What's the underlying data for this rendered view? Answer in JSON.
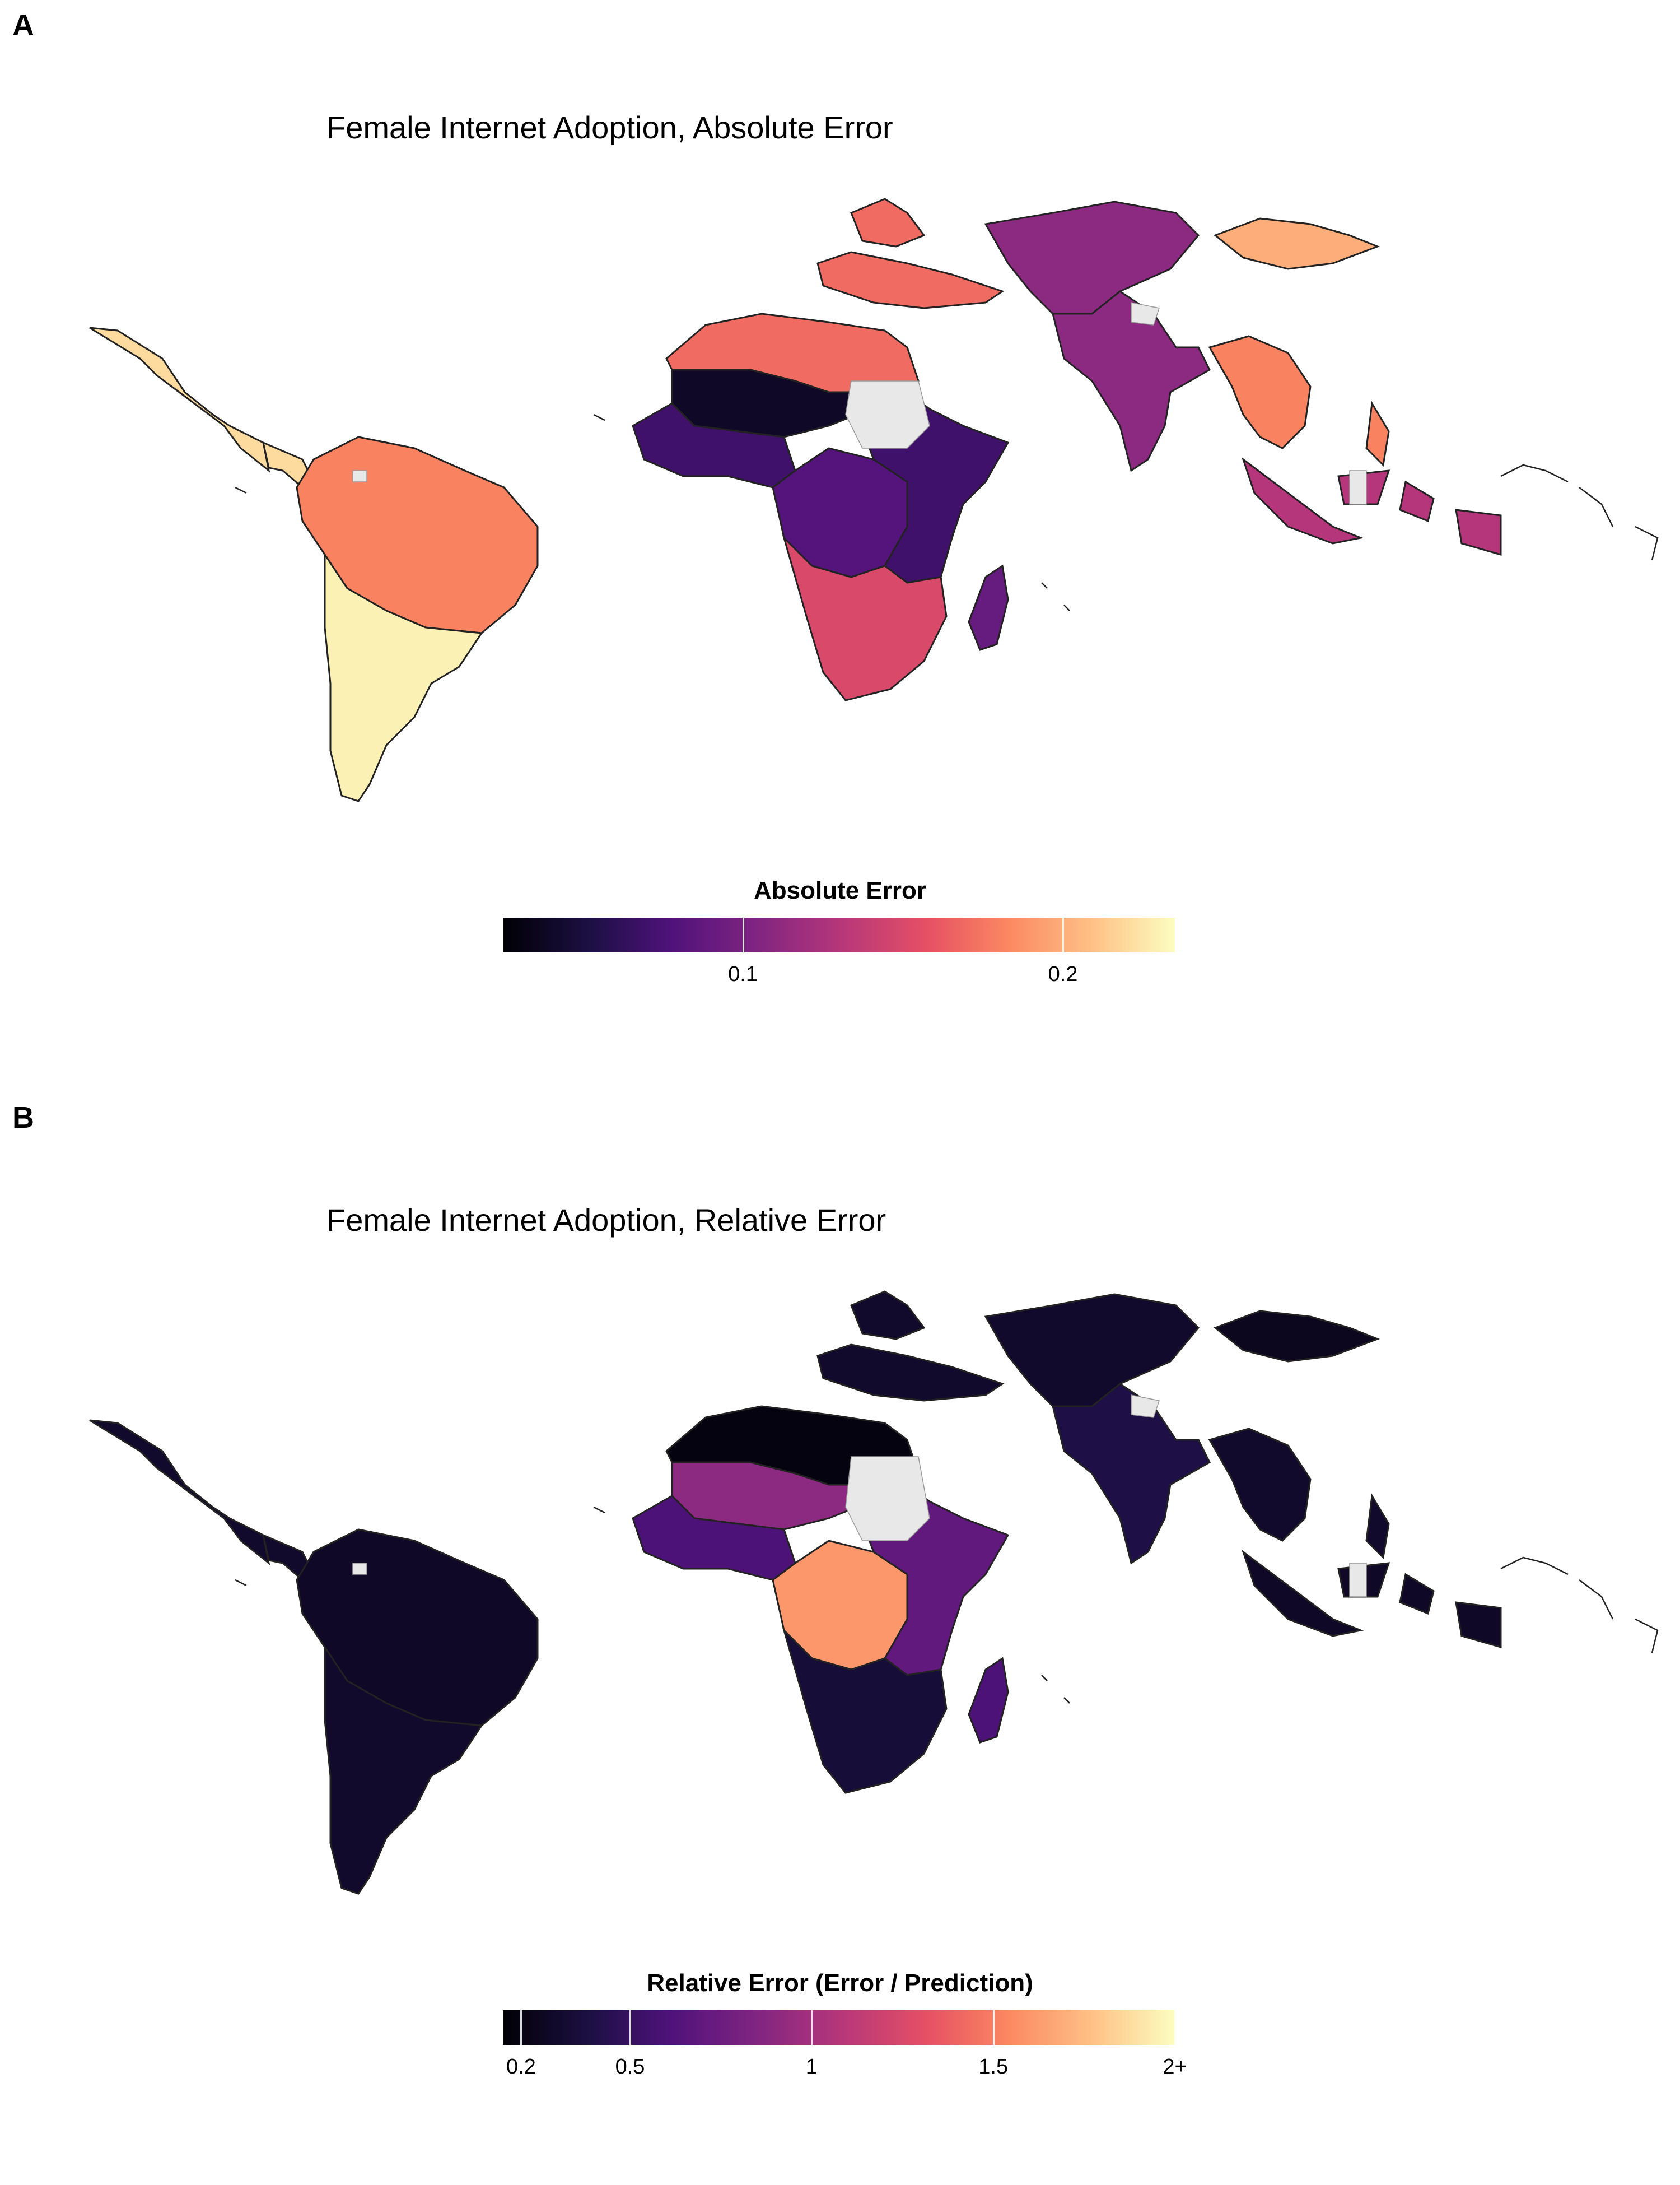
{
  "panels": [
    {
      "letter": "A",
      "title": "Female Internet Adoption, Absolute Error",
      "legend": {
        "title": "Absolute Error",
        "ticks": [
          "0.1",
          "0.2"
        ],
        "tick_values": [
          0.1,
          0.2
        ],
        "scale_range": [
          0.025,
          0.235
        ],
        "colormap": "magma"
      },
      "regions": {
        "central_america": 0.22,
        "south_america_north": 0.18,
        "south_america_south": 0.23,
        "north_africa": 0.17,
        "sahel": 0.04,
        "west_africa": 0.07,
        "central_africa": 0.08,
        "east_africa": 0.07,
        "southern_africa": 0.15,
        "madagascar": 0.09,
        "turkey_caucasus": 0.17,
        "central_asia": 0.11,
        "mongolia": 0.2,
        "south_asia": 0.11,
        "southeast_asia": 0.18,
        "indonesia": 0.13
      }
    },
    {
      "letter": "B",
      "title": "Female Internet Adoption, Relative Error",
      "legend": {
        "title": "Relative Error (Error / Prediction)",
        "ticks": [
          "0.2",
          "0.5",
          "1",
          "1.5",
          "2+"
        ],
        "tick_values": [
          0.2,
          0.5,
          1,
          1.5,
          2
        ],
        "scale_range": [
          0.15,
          2
        ],
        "colormap": "magma"
      },
      "regions": {
        "central_america": 0.3,
        "south_america_north": 0.28,
        "south_america_south": 0.3,
        "north_africa": 0.2,
        "sahel": 0.9,
        "west_africa": 0.6,
        "central_africa": 1.6,
        "east_africa": 0.7,
        "southern_africa": 0.35,
        "madagascar": 0.6,
        "turkey_caucasus": 0.3,
        "central_asia": 0.3,
        "mongolia": 0.25,
        "south_asia": 0.4,
        "southeast_asia": 0.3,
        "indonesia": 0.28
      }
    }
  ],
  "colors": {
    "nodata": "#e8e8e8",
    "border": "#222222"
  }
}
